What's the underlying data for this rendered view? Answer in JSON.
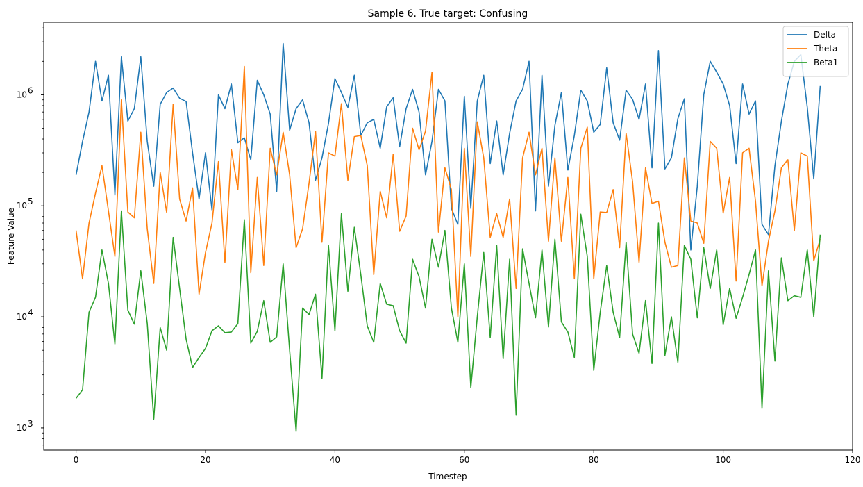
{
  "chart_data": {
    "type": "line",
    "title": "Sample 6. True target: Confusing",
    "xlabel": "Timestep",
    "ylabel": "Feature Value",
    "xlim": [
      -5,
      120
    ],
    "ylim": [
      630,
      4500000
    ],
    "yscale": "log",
    "grid": false,
    "legend_position": "top-right",
    "xticks": [
      0,
      20,
      40,
      60,
      80,
      100,
      120
    ],
    "xtick_labels": [
      "0",
      "20",
      "40",
      "60",
      "80",
      "100",
      "120"
    ],
    "yticks": [
      1000,
      10000,
      100000,
      1000000
    ],
    "ytick_base": "10",
    "ytick_exponents": [
      "3",
      "4",
      "5",
      "6"
    ],
    "series": [
      {
        "name": "Delta",
        "color": "#1f77b4",
        "values": [
          190000,
          380000,
          700000,
          2000000,
          880000,
          1500000,
          125000,
          2200000,
          580000,
          750000,
          2200000,
          380000,
          150000,
          820000,
          1050000,
          1150000,
          930000,
          870000,
          300000,
          115000,
          300000,
          92000,
          1000000,
          750000,
          1250000,
          370000,
          410000,
          260000,
          1350000,
          1000000,
          670000,
          135000,
          2900000,
          480000,
          750000,
          900000,
          560000,
          170000,
          270000,
          550000,
          1400000,
          1050000,
          770000,
          1500000,
          430000,
          560000,
          600000,
          330000,
          780000,
          940000,
          340000,
          750000,
          1120000,
          700000,
          190000,
          380000,
          1120000,
          880000,
          95000,
          68000,
          970000,
          95000,
          880000,
          1500000,
          240000,
          580000,
          190000,
          450000,
          880000,
          1120000,
          2000000,
          90000,
          1500000,
          150000,
          530000,
          1050000,
          210000,
          430000,
          1100000,
          880000,
          460000,
          540000,
          1750000,
          560000,
          390000,
          1100000,
          910000,
          600000,
          1250000,
          220000,
          2500000,
          215000,
          270000,
          610000,
          920000,
          40000,
          150000,
          1000000,
          2000000,
          1600000,
          1250000,
          800000,
          240000,
          1250000,
          670000,
          880000,
          68000,
          55000,
          230000,
          580000,
          1250000,
          2000000,
          2300000,
          770000,
          175000,
          1200000
        ]
      },
      {
        "name": "Theta",
        "color": "#ff7f0e",
        "values": [
          60000,
          22000,
          70000,
          130000,
          230000,
          90000,
          35000,
          900000,
          88000,
          78000,
          460000,
          62000,
          20000,
          200000,
          87000,
          820000,
          115000,
          73000,
          145000,
          16000,
          38000,
          70000,
          250000,
          31000,
          320000,
          140000,
          1800000,
          25000,
          180000,
          29000,
          330000,
          190000,
          460000,
          190000,
          42000,
          62000,
          160000,
          470000,
          47000,
          300000,
          280000,
          830000,
          170000,
          420000,
          430000,
          230000,
          24000,
          135000,
          78000,
          290000,
          59000,
          81000,
          500000,
          320000,
          470000,
          1600000,
          58000,
          220000,
          140000,
          10000,
          330000,
          35000,
          570000,
          270000,
          52000,
          85000,
          52000,
          115000,
          18000,
          270000,
          460000,
          190000,
          330000,
          48000,
          270000,
          48000,
          180000,
          22000,
          330000,
          510000,
          22000,
          88000,
          87000,
          140000,
          42000,
          450000,
          165000,
          31000,
          220000,
          105000,
          110000,
          47000,
          28000,
          29000,
          270000,
          73000,
          70000,
          46000,
          380000,
          330000,
          86000,
          180000,
          21000,
          300000,
          330000,
          110000,
          19000,
          48000,
          90000,
          220000,
          260000,
          60000,
          300000,
          280000,
          32000,
          50000
        ]
      },
      {
        "name": "Beta1",
        "color": "#2ca02c",
        "values": [
          1850,
          2200,
          11000,
          15000,
          40000,
          20000,
          5700,
          90000,
          11500,
          8600,
          26000,
          8700,
          1200,
          8000,
          5000,
          52000,
          18000,
          6300,
          3500,
          4300,
          5200,
          7500,
          8300,
          7200,
          7300,
          8700,
          75000,
          5800,
          7400,
          14000,
          5900,
          6600,
          30000,
          5000,
          930,
          12000,
          10500,
          16000,
          2800,
          44000,
          7500,
          85000,
          17000,
          64000,
          24000,
          8300,
          5900,
          20000,
          13000,
          12600,
          7500,
          5800,
          33000,
          23000,
          12000,
          50000,
          28000,
          60000,
          12000,
          5900,
          30000,
          2300,
          10000,
          38000,
          6500,
          44000,
          4200,
          33000,
          1300,
          41000,
          20000,
          9800,
          40000,
          8100,
          50000,
          9000,
          7300,
          4300,
          84000,
          35000,
          3300,
          11000,
          29000,
          11000,
          6500,
          47000,
          7000,
          4700,
          14000,
          3800,
          70000,
          4500,
          10000,
          3900,
          44000,
          33000,
          9800,
          42000,
          18000,
          40000,
          8500,
          18000,
          9700,
          15000,
          24000,
          40000,
          1500,
          26000,
          4000,
          34000,
          14000,
          15500,
          15000,
          40000,
          10000,
          55000
        ]
      }
    ]
  }
}
